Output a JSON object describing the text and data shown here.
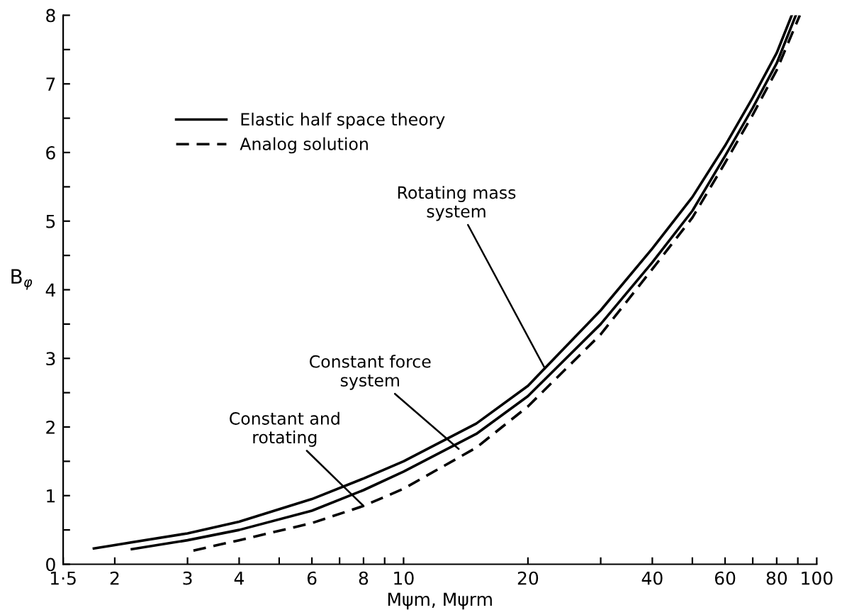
{
  "chart_data": {
    "type": "line",
    "xlabel": "Mψm, Mψrm",
    "ylabel": "B$_{φ}$",
    "log": "x",
    "xlim": [
      1.5,
      100
    ],
    "ylim": [
      0,
      8
    ],
    "xticks": [
      {
        "value": 1.5,
        "label": "1·5"
      },
      2,
      3,
      4,
      {
        "value": 5,
        "label": null
      },
      6,
      {
        "value": 7,
        "label": null
      },
      8,
      {
        "value": 9,
        "label": null
      },
      10,
      20,
      {
        "value": 30,
        "label": null
      },
      40,
      {
        "value": 50,
        "label": null
      },
      60,
      {
        "value": 70,
        "label": null
      },
      80,
      {
        "value": 90,
        "label": null
      },
      100
    ],
    "yticks": [
      0,
      {
        "value": 0.5,
        "label": null
      },
      1,
      {
        "value": 1.5,
        "label": null
      },
      2,
      {
        "value": 2.5,
        "label": null
      },
      3,
      {
        "value": 3.5,
        "label": null
      },
      4,
      {
        "value": 4.5,
        "label": null
      },
      5,
      {
        "value": 5.5,
        "label": null
      },
      6,
      {
        "value": 6.5,
        "label": null
      },
      7,
      {
        "value": 7.5,
        "label": null
      },
      8
    ],
    "grid": false,
    "legend": "top left",
    "marker": "none",
    "series": [
      {
        "name": "Elastic half space theory",
        "color": "#000000",
        "line_style": "solid",
        "x": [
          1.78,
          2,
          3,
          4,
          6,
          8,
          10,
          15,
          20,
          30,
          40,
          50,
          60,
          70,
          80,
          87
        ],
        "values": [
          0.23,
          0.28,
          0.45,
          0.62,
          0.95,
          1.25,
          1.5,
          2.05,
          2.6,
          3.7,
          4.6,
          5.35,
          6.1,
          6.8,
          7.45,
          8.0
        ]
      },
      {
        "color": "#000000",
        "line_style": "solid",
        "x": [
          2.2,
          3,
          4,
          6,
          8,
          10,
          15,
          20,
          30,
          40,
          50,
          60,
          70,
          80,
          89
        ],
        "values": [
          0.22,
          0.35,
          0.5,
          0.78,
          1.08,
          1.35,
          1.9,
          2.45,
          3.5,
          4.4,
          5.15,
          5.95,
          6.65,
          7.3,
          8.0
        ]
      },
      {
        "name": "Analog solution",
        "color": "#000000",
        "line_style": "dashed",
        "x": [
          3.1,
          4,
          6,
          8,
          10,
          15,
          20,
          30,
          40,
          50,
          60,
          70,
          80,
          91
        ],
        "values": [
          0.2,
          0.35,
          0.6,
          0.85,
          1.1,
          1.7,
          2.3,
          3.35,
          4.3,
          5.05,
          5.85,
          6.55,
          7.2,
          8.0
        ]
      }
    ],
    "annotations": [
      {
        "text": "Rotating mass\nsystem",
        "x": 22,
        "y": 2.85
      },
      {
        "text": "Constant force\nsystem",
        "x": 13.6,
        "y": 1.68
      },
      {
        "text": "Constant and\nrotating",
        "x": 8,
        "y": 0.85
      }
    ]
  }
}
